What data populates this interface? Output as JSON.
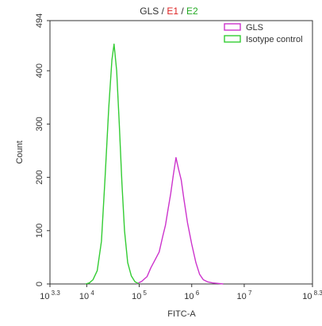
{
  "chart_data": {
    "type": "line",
    "title_parts": [
      {
        "text": "GLS",
        "color": "#333333"
      },
      {
        "text": " / ",
        "color": "#333333"
      },
      {
        "text": "E1",
        "color": "#dd2222"
      },
      {
        "text": " / ",
        "color": "#333333"
      },
      {
        "text": "E2",
        "color": "#22aa22"
      }
    ],
    "xlabel": "FITC-A",
    "ylabel": "Count",
    "x_scale": "log10",
    "xlim_log10": [
      3.3,
      8.3
    ],
    "ylim": [
      0,
      494
    ],
    "x_ticks": [
      {
        "base": "10",
        "exp": "3.3",
        "log": 3.3
      },
      {
        "base": "10",
        "exp": "4",
        "log": 4
      },
      {
        "base": "10",
        "exp": "5",
        "log": 5
      },
      {
        "base": "10",
        "exp": "6",
        "log": 6
      },
      {
        "base": "10",
        "exp": "7",
        "log": 7
      },
      {
        "base": "10",
        "exp": "8.3",
        "log": 8.3
      }
    ],
    "y_ticks": [
      0,
      100,
      200,
      300,
      400,
      494
    ],
    "legend_position": "top-right",
    "series": [
      {
        "name": "GLS",
        "color": "#cc33cc",
        "x_log10": [
          4.95,
          5.05,
          5.15,
          5.22,
          5.3,
          5.38,
          5.45,
          5.5,
          5.55,
          5.6,
          5.65,
          5.7,
          5.75,
          5.8,
          5.85,
          5.92,
          6.0,
          6.08,
          6.15,
          6.22,
          6.3,
          6.4,
          6.5,
          6.6
        ],
        "y": [
          0,
          5,
          14,
          30,
          45,
          60,
          90,
          110,
          140,
          170,
          205,
          237,
          215,
          195,
          160,
          115,
          75,
          40,
          18,
          8,
          4,
          2,
          1,
          0
        ]
      },
      {
        "name": "Isotype control",
        "color": "#33cc33",
        "x_log10": [
          3.98,
          4.05,
          4.12,
          4.2,
          4.28,
          4.35,
          4.42,
          4.48,
          4.52,
          4.57,
          4.62,
          4.67,
          4.72,
          4.78,
          4.85,
          4.92,
          5.0
        ],
        "y": [
          0,
          2,
          8,
          25,
          80,
          200,
          330,
          420,
          450,
          400,
          300,
          190,
          100,
          40,
          15,
          4,
          0
        ]
      }
    ]
  }
}
